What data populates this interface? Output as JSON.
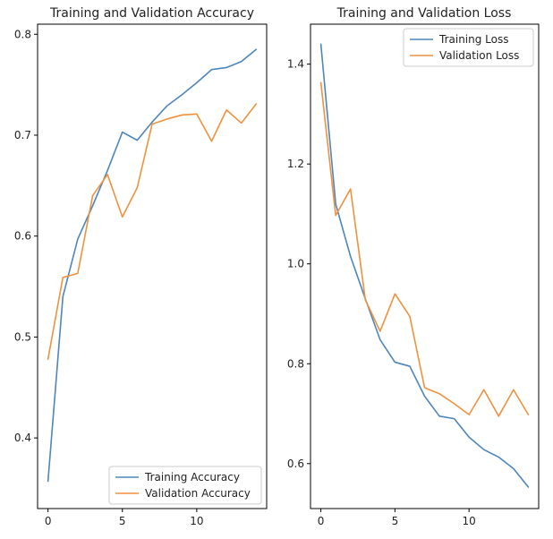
{
  "colors": {
    "training": "#4c86bd",
    "validation": "#f0913e"
  },
  "chart_data": [
    {
      "type": "line",
      "title": "Training and Validation Accuracy",
      "xlabel": "",
      "ylabel": "",
      "x": [
        0,
        1,
        2,
        3,
        4,
        5,
        6,
        7,
        8,
        9,
        10,
        11,
        12,
        13,
        14
      ],
      "xlim": [
        -0.7,
        14.7
      ],
      "ylim": [
        0.33,
        0.81
      ],
      "xticks": [
        0,
        5,
        10
      ],
      "yticks": [
        0.4,
        0.5,
        0.6,
        0.7,
        0.8
      ],
      "legend_position": "bottom-right",
      "series": [
        {
          "name": "Training Accuracy",
          "color": "training",
          "values": [
            0.357,
            0.54,
            0.597,
            0.63,
            0.665,
            0.703,
            0.695,
            0.713,
            0.729,
            0.74,
            0.752,
            0.765,
            0.767,
            0.773,
            0.785
          ]
        },
        {
          "name": "Validation Accuracy",
          "color": "validation",
          "values": [
            0.478,
            0.559,
            0.563,
            0.64,
            0.661,
            0.619,
            0.648,
            0.711,
            0.716,
            0.72,
            0.721,
            0.694,
            0.725,
            0.712,
            0.731
          ]
        }
      ]
    },
    {
      "type": "line",
      "title": "Training and Validation Loss",
      "xlabel": "",
      "ylabel": "",
      "x": [
        0,
        1,
        2,
        3,
        4,
        5,
        6,
        7,
        8,
        9,
        10,
        11,
        12,
        13,
        14
      ],
      "xlim": [
        -0.7,
        14.7
      ],
      "ylim": [
        0.51,
        1.48
      ],
      "xticks": [
        0,
        5,
        10
      ],
      "yticks": [
        0.6,
        0.8,
        1.0,
        1.2,
        1.4
      ],
      "legend_position": "top-right",
      "series": [
        {
          "name": "Training Loss",
          "color": "training",
          "values": [
            1.44,
            1.12,
            1.015,
            0.93,
            0.848,
            0.803,
            0.795,
            0.735,
            0.695,
            0.69,
            0.653,
            0.628,
            0.613,
            0.59,
            0.553
          ]
        },
        {
          "name": "Validation Loss",
          "color": "validation",
          "values": [
            1.363,
            1.097,
            1.15,
            0.928,
            0.865,
            0.94,
            0.895,
            0.752,
            0.74,
            0.72,
            0.698,
            0.748,
            0.695,
            0.748,
            0.698
          ]
        }
      ]
    }
  ]
}
